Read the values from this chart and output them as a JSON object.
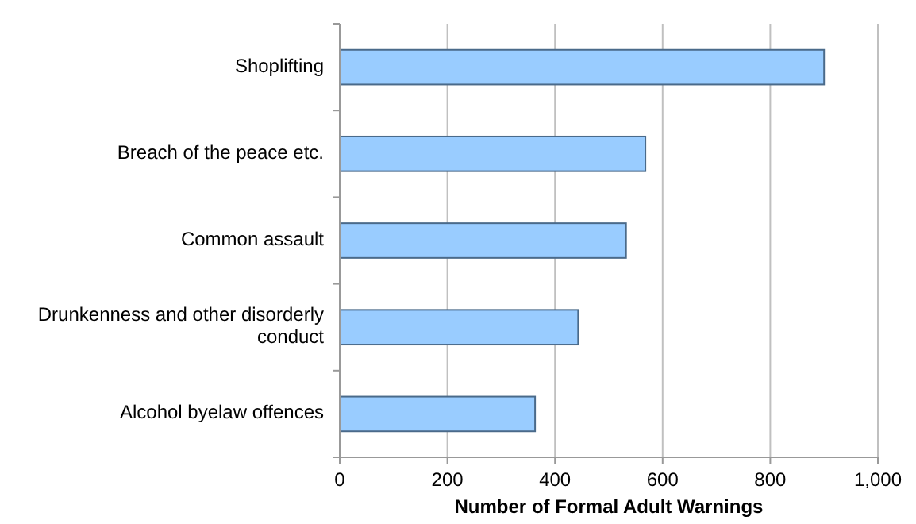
{
  "chart_data": {
    "type": "bar",
    "orientation": "horizontal",
    "xlabel": "Number of Formal Adult Warnings",
    "categories": [
      "Shoplifting",
      "Breach of the peace etc.",
      "Common assault",
      "Drunkenness and other disorderly conduct",
      "Alcohol byelaw offences"
    ],
    "values": [
      900,
      568,
      532,
      443,
      363
    ],
    "color": "#99ccff",
    "xlim": [
      0,
      1000
    ],
    "xticks": [
      0,
      {
        "value": 200,
        "label": "200"
      },
      {
        "value": 400,
        "label": "400"
      },
      {
        "value": 600,
        "label": "600"
      },
      {
        "value": 800,
        "label": "800"
      },
      {
        "value": 1000,
        "label": "1,000"
      }
    ],
    "grid": "x"
  }
}
